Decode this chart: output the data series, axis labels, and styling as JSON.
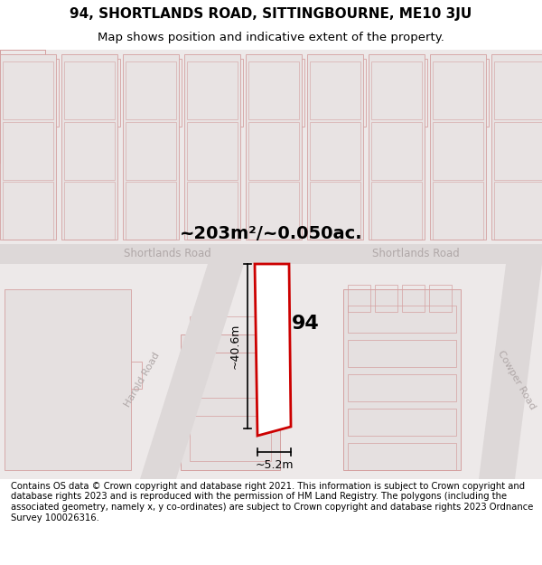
{
  "title": "94, SHORTLANDS ROAD, SITTINGBOURNE, ME10 3JU",
  "subtitle": "Map shows position and indicative extent of the property.",
  "area_text": "~203m²/~0.050ac.",
  "dim_width": "~5.2m",
  "dim_height": "~40.6m",
  "property_number": "94",
  "road_label_left": "Shortlands Road",
  "road_label_right": "Shortlands Road",
  "road_label_harold": "Harold Road",
  "road_label_cowper": "Cowper Road",
  "footer_text": "Contains OS data © Crown copyright and database right 2021. This information is subject to Crown copyright and database rights 2023 and is reproduced with the permission of HM Land Registry. The polygons (including the associated geometry, namely x, y co-ordinates) are subject to Crown copyright and database rights 2023 Ordnance Survey 100026316.",
  "bg_color": "#f0eeee",
  "map_bg": "#e8e4e4",
  "road_color": "#d8d0d0",
  "plot_line_color": "#cc0000",
  "dim_line_color": "#000000",
  "road_text_color": "#aaaaaa",
  "title_section_bg": "#ffffff",
  "footer_bg": "#ffffff",
  "figsize": [
    6.0,
    6.25
  ],
  "dpi": 100
}
